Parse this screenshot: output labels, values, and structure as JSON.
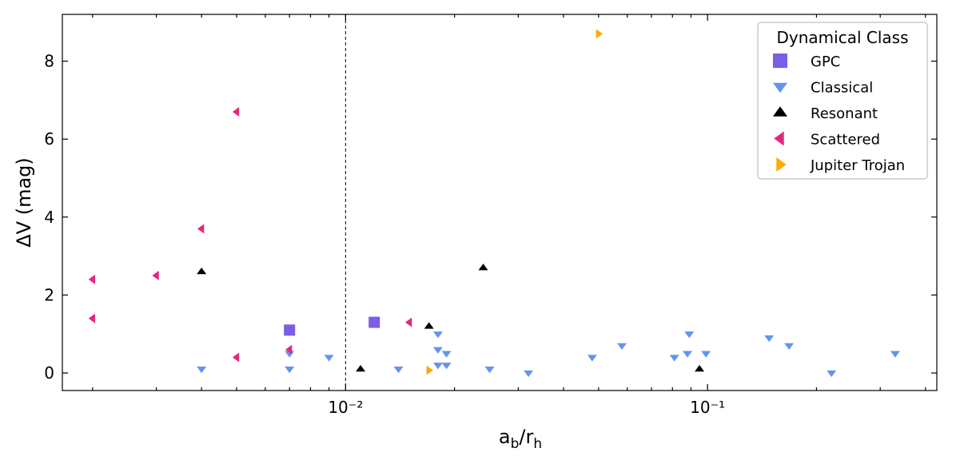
{
  "chart_data": {
    "type": "scatter",
    "title": "",
    "xlabel": "a_b/r_h",
    "ylabel": "ΔV (mag)",
    "xscale": "log",
    "xlim": [
      0.00165,
      0.43
    ],
    "ylim": [
      -0.45,
      9.2
    ],
    "yticks": [
      0,
      2,
      4,
      6,
      8
    ],
    "xticks_major": [
      0.01,
      0.1
    ],
    "xtick_labels": [
      "10⁻²",
      "10⁻¹"
    ],
    "vline": {
      "x": 0.01,
      "style": "dashed",
      "color": "#000000"
    },
    "grid": false,
    "legend": {
      "title": "Dynamical Class",
      "placement": "top-right"
    },
    "series": [
      {
        "name": "GPC",
        "marker": "square",
        "color": "#7b5de8",
        "points": [
          [
            0.007,
            1.1
          ],
          [
            0.012,
            1.3
          ]
        ]
      },
      {
        "name": "Classical",
        "marker": "triangle-down",
        "color": "#6495ed",
        "points": [
          [
            0.004,
            0.1
          ],
          [
            0.007,
            0.5
          ],
          [
            0.007,
            0.1
          ],
          [
            0.009,
            0.4
          ],
          [
            0.014,
            0.1
          ],
          [
            0.018,
            1.0
          ],
          [
            0.018,
            0.6
          ],
          [
            0.019,
            0.5
          ],
          [
            0.018,
            0.2
          ],
          [
            0.019,
            0.2
          ],
          [
            0.025,
            0.1
          ],
          [
            0.032,
            0.0
          ],
          [
            0.048,
            0.4
          ],
          [
            0.058,
            0.7
          ],
          [
            0.081,
            0.4
          ],
          [
            0.089,
            1.0
          ],
          [
            0.088,
            0.5
          ],
          [
            0.099,
            0.5
          ],
          [
            0.148,
            0.9
          ],
          [
            0.168,
            0.7
          ],
          [
            0.22,
            0.0
          ],
          [
            0.33,
            0.5
          ]
        ]
      },
      {
        "name": "Resonant",
        "marker": "triangle-up",
        "color": "#000000",
        "points": [
          [
            0.004,
            2.6
          ],
          [
            0.011,
            0.1
          ],
          [
            0.017,
            1.2
          ],
          [
            0.024,
            2.7
          ],
          [
            0.095,
            0.1
          ]
        ]
      },
      {
        "name": "Scattered",
        "marker": "triangle-left",
        "color": "#e0287f",
        "points": [
          [
            0.002,
            2.4
          ],
          [
            0.002,
            1.4
          ],
          [
            0.003,
            2.5
          ],
          [
            0.004,
            3.7
          ],
          [
            0.005,
            6.7
          ],
          [
            0.005,
            0.4
          ],
          [
            0.007,
            0.6
          ],
          [
            0.015,
            1.3
          ]
        ]
      },
      {
        "name": "Jupiter Trojan",
        "marker": "triangle-right",
        "color": "#ffaa00",
        "points": [
          [
            0.05,
            8.7
          ],
          [
            0.017,
            0.07
          ]
        ]
      }
    ]
  }
}
